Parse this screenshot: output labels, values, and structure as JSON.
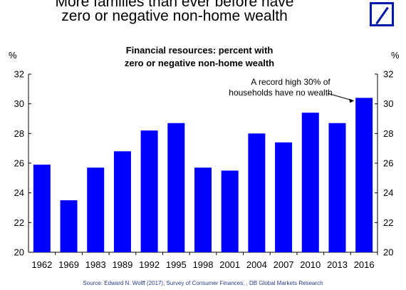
{
  "headline": {
    "line1": "More families than ever before have",
    "line2": "zero or negative non-home wealth"
  },
  "logo": {
    "name": "deutsche-bank-logo",
    "color": "#0018a8"
  },
  "chart_data": {
    "type": "bar",
    "title_line1": "Financial resources: percent with",
    "title_line2": "zero or negative non-home wealth",
    "unit_left": "%",
    "unit_right": "%",
    "categories": [
      "1962",
      "1969",
      "1983",
      "1989",
      "1992",
      "1995",
      "1998",
      "2001",
      "2004",
      "2007",
      "2010",
      "2013",
      "2016"
    ],
    "values": [
      25.9,
      23.5,
      25.7,
      26.8,
      28.2,
      28.7,
      25.7,
      25.5,
      28.0,
      27.4,
      29.4,
      28.7,
      30.4
    ],
    "ylim": [
      20,
      32
    ],
    "yticks": [
      20,
      22,
      24,
      26,
      28,
      30,
      32
    ],
    "bar_color": "#0000ff",
    "grid": false,
    "annotation": {
      "line1": "A record high 30% of",
      "line2": "households have no wealth",
      "target_category": "2016"
    },
    "source": "Source: Edward N. Wolff (2017), Survey of Consumer Finances, , DB Global Markets Research"
  }
}
